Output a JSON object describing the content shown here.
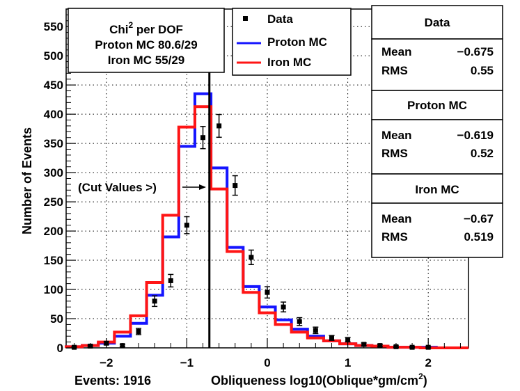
{
  "chart_data": {
    "type": "histogram",
    "xlabel": "Obliqueness  log10(Oblique*gm/cm",
    "xlabel_sup": "2",
    "xlabel_close": ")",
    "footer_events": "Events: 1916",
    "ylabel": "Number of Events",
    "xlim": [
      -2.5,
      2.5
    ],
    "ylim": [
      0,
      580
    ],
    "xticks": [
      {
        "v": -2,
        "label": "−2"
      },
      {
        "v": -1,
        "label": "−1"
      },
      {
        "v": 0,
        "label": "0"
      },
      {
        "v": 1,
        "label": "1"
      },
      {
        "v": 2,
        "label": "2"
      }
    ],
    "yticks": [
      0,
      50,
      100,
      150,
      200,
      250,
      300,
      350,
      400,
      450,
      500,
      550
    ],
    "grid": true,
    "bin_edges": [
      -2.5,
      -2.3,
      -2.1,
      -1.9,
      -1.7,
      -1.5,
      -1.3,
      -1.1,
      -0.9,
      -0.7,
      -0.5,
      -0.3,
      -0.1,
      0.1,
      0.3,
      0.5,
      0.7,
      0.9,
      1.1,
      1.3,
      1.5,
      1.7,
      1.9,
      2.1,
      2.3,
      2.5
    ],
    "series": [
      {
        "name": "Data",
        "style": "points",
        "color": "#000000",
        "values": [
          1,
          3,
          8,
          4,
          28,
          80,
          115,
          210,
          360,
          380,
          278,
          155,
          95,
          70,
          45,
          30,
          17,
          14,
          6,
          4,
          2,
          1,
          1,
          0,
          0
        ],
        "errors": [
          1,
          1.7,
          2.8,
          2,
          5.3,
          9,
          10.7,
          14.5,
          19,
          19.5,
          16.7,
          12.4,
          9.7,
          8.4,
          6.7,
          5.5,
          4.1,
          3.7,
          2.4,
          2,
          1.4,
          1,
          1,
          0,
          0
        ]
      },
      {
        "name": "Proton MC",
        "style": "step",
        "color": "#1515ff",
        "values": [
          2,
          4,
          8,
          20,
          42,
          90,
          190,
          345,
          435,
          308,
          172,
          105,
          70,
          48,
          32,
          20,
          12,
          7,
          4,
          3,
          1,
          1,
          1,
          0,
          0
        ]
      },
      {
        "name": "Iron MC",
        "style": "step",
        "color": "#ff1515",
        "values": [
          2,
          4,
          10,
          27,
          55,
          112,
          227,
          378,
          413,
          272,
          165,
          95,
          60,
          40,
          27,
          17,
          12,
          7,
          4,
          3,
          1,
          1,
          0,
          0,
          0
        ]
      }
    ],
    "cut_line": {
      "x": -0.72,
      "color": "#000000"
    },
    "annotation": {
      "text": "(Cut Values >)",
      "x": -1.0,
      "y": 283
    }
  },
  "chi_box": {
    "line1_pre": "Chi",
    "line1_sup": "2",
    "line1_post": " per DOF",
    "line2": "Proton MC 80.6/29",
    "line3": "Iron MC 55/29"
  },
  "legend": [
    {
      "label": "Data",
      "color": "#000000",
      "kind": "marker"
    },
    {
      "label": "Proton MC",
      "color": "#1515ff",
      "kind": "line"
    },
    {
      "label": "Iron MC",
      "color": "#ff1515",
      "kind": "line"
    }
  ],
  "stats": [
    {
      "title": "Data",
      "mean_label": "Mean",
      "mean": "−0.675",
      "rms_label": "RMS",
      "rms": "0.55"
    },
    {
      "title": "Proton MC",
      "mean_label": "Mean",
      "mean": "−0.619",
      "rms_label": "RMS",
      "rms": "0.52"
    },
    {
      "title": "Iron MC",
      "mean_label": "Mean",
      "mean": "−0.67",
      "rms_label": "RMS",
      "rms": "0.519"
    }
  ]
}
